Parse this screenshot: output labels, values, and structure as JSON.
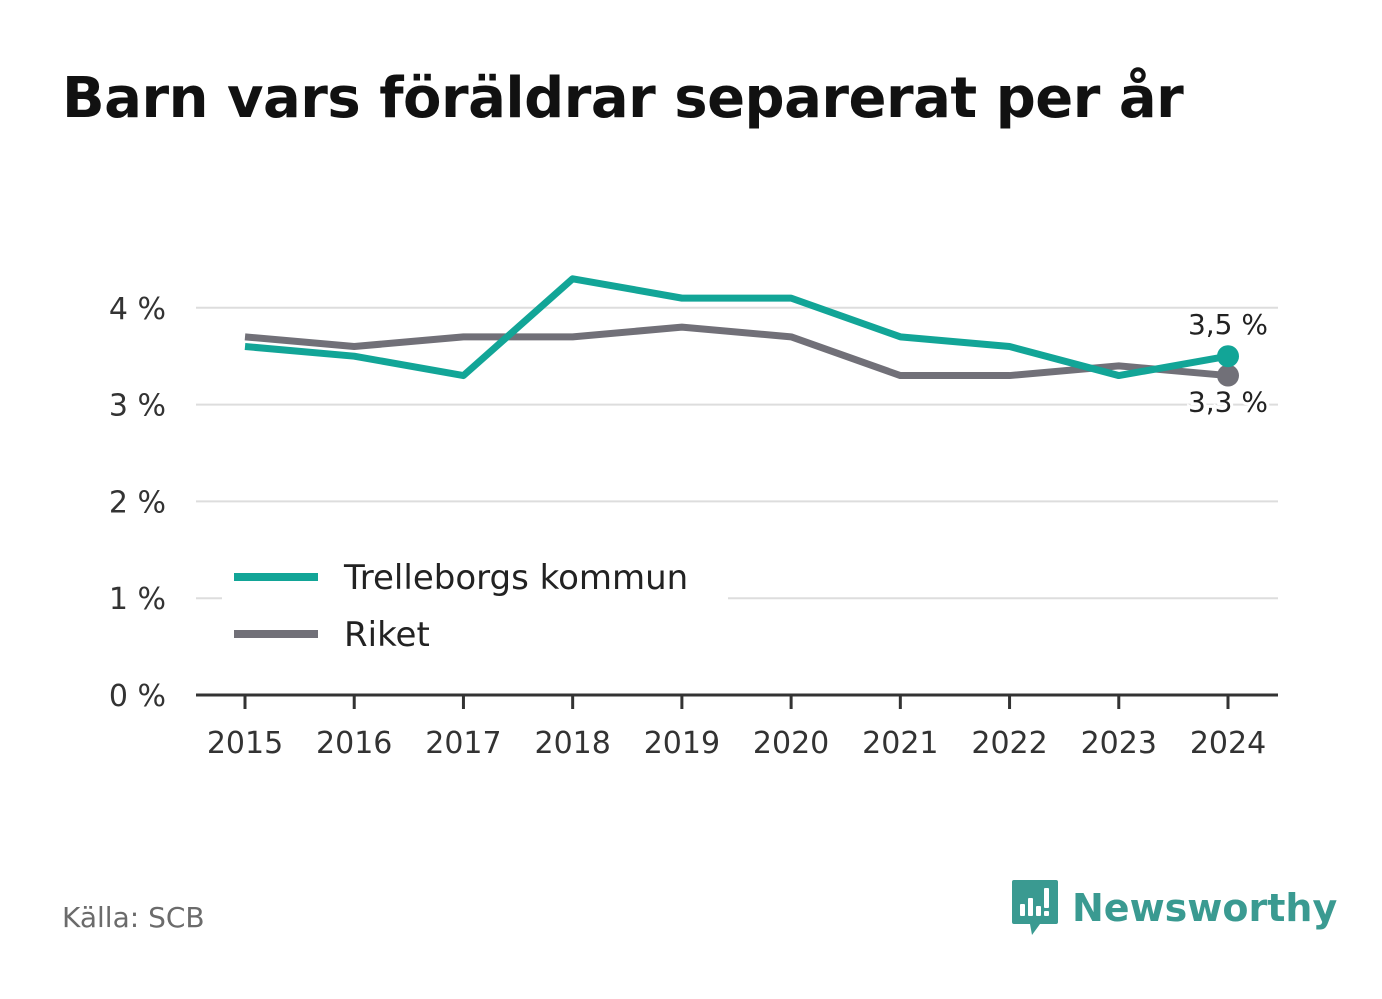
{
  "title": "Barn vars föräldrar separerat per år",
  "source": "Källa: SCB",
  "brand": {
    "name": "Newsworthy",
    "icon": "newsworthy-logo-icon",
    "color": "#3a9a91"
  },
  "chart_data": {
    "type": "line",
    "x": [
      "2015",
      "2016",
      "2017",
      "2018",
      "2019",
      "2020",
      "2021",
      "2022",
      "2023",
      "2024"
    ],
    "ylim": [
      0,
      4.4
    ],
    "yticks": [
      {
        "value": 0,
        "label": "0 %"
      },
      {
        "value": 1,
        "label": "1 %"
      },
      {
        "value": 2,
        "label": "2 %"
      },
      {
        "value": 3,
        "label": "3 %"
      },
      {
        "value": 4,
        "label": "4 %"
      }
    ],
    "grid": true,
    "legend": "bottom-left",
    "series": [
      {
        "name": "Trelleborgs kommun",
        "color": "#12a597",
        "values": [
          3.6,
          3.5,
          3.3,
          4.3,
          4.1,
          4.1,
          3.7,
          3.6,
          3.3,
          3.5
        ],
        "end_label": "3,5 %"
      },
      {
        "name": "Riket",
        "color": "#717078",
        "values": [
          3.7,
          3.6,
          3.7,
          3.7,
          3.8,
          3.7,
          3.3,
          3.3,
          3.4,
          3.3
        ],
        "end_label": "3,3 %"
      }
    ]
  }
}
